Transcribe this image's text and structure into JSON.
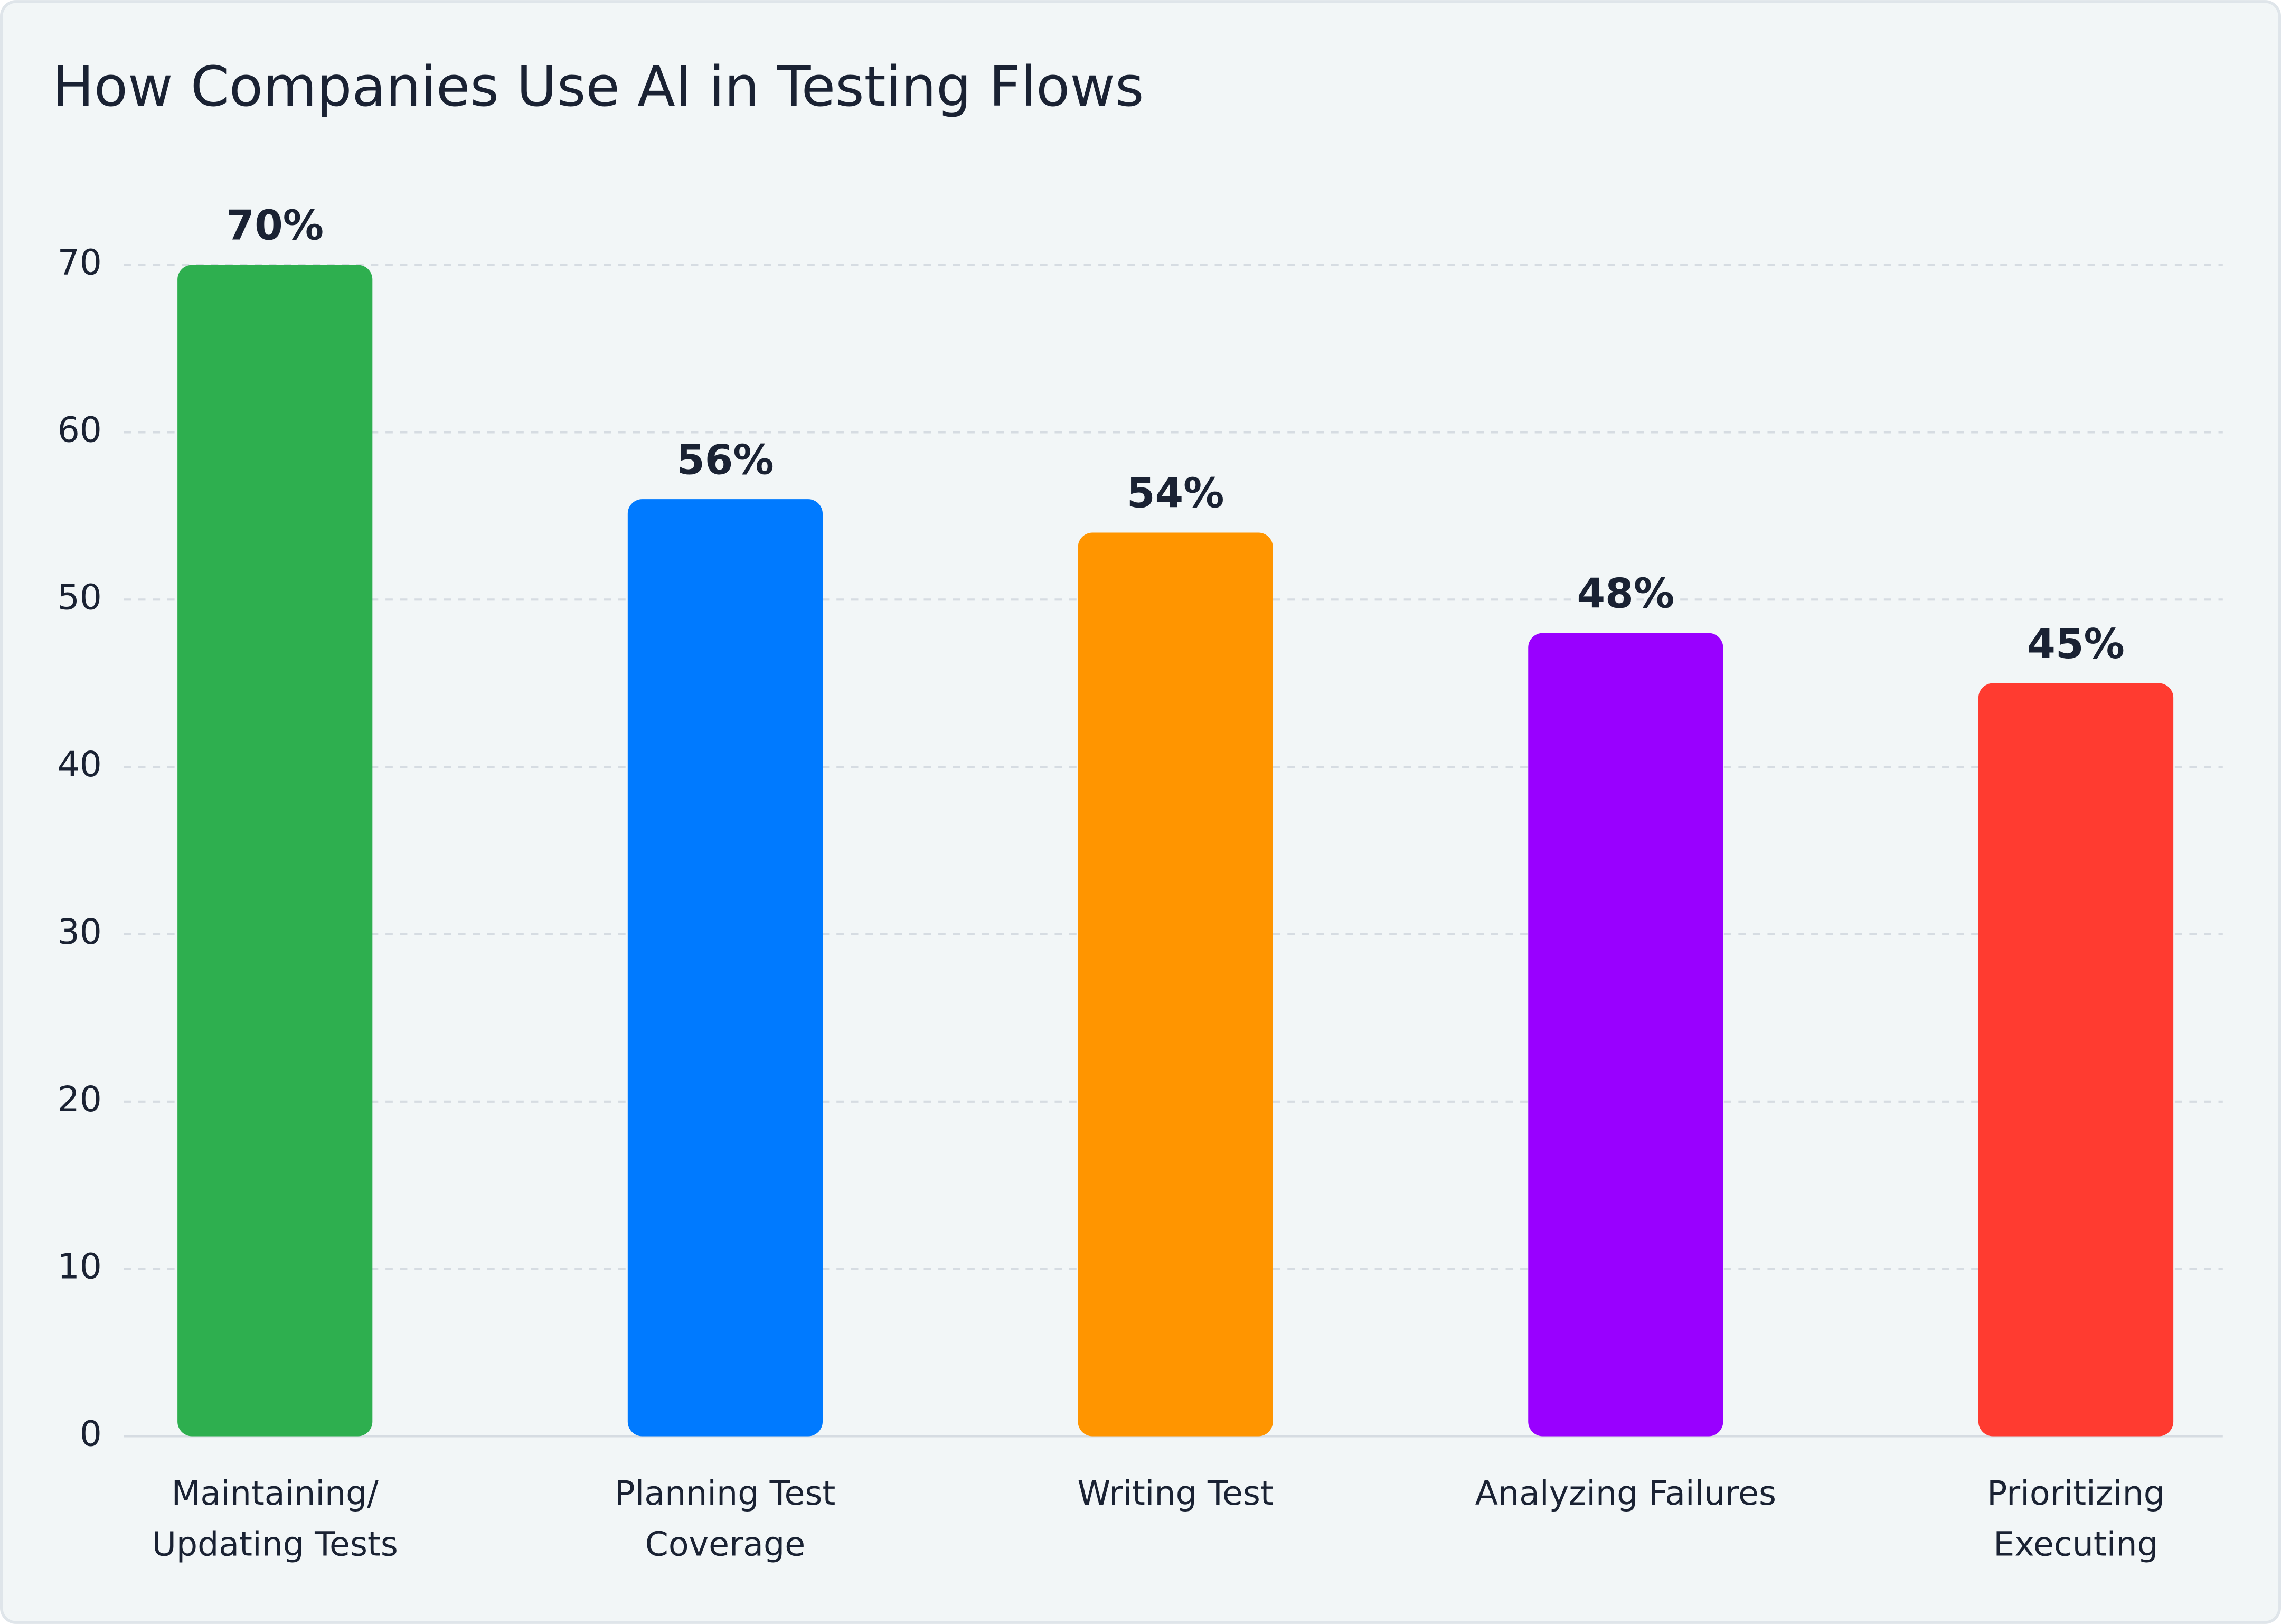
{
  "chart_data": {
    "type": "bar",
    "title": "How Companies Use AI in Testing Flows",
    "categories": [
      "Maintaining/ Updating Tests",
      "Planning Test Coverage",
      "Writing Test",
      "Analyzing Failures",
      "Prioritizing Executing"
    ],
    "values": [
      70,
      56,
      54,
      48,
      45
    ],
    "value_labels": [
      "70%",
      "56%",
      "54%",
      "48%",
      "45%"
    ],
    "colors": [
      "#2eaf4f",
      "#007aff",
      "#ff9500",
      "#9900ff",
      "#ff3b30"
    ],
    "ylim": [
      0,
      70
    ],
    "yticks": [
      0,
      10,
      20,
      30,
      40,
      50,
      60,
      70
    ],
    "grid": true
  }
}
